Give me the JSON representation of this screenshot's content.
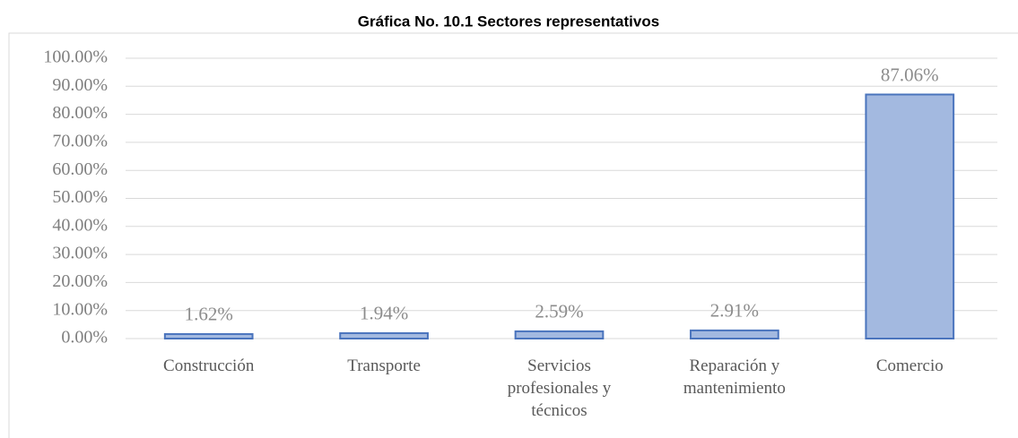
{
  "chart_data": {
    "type": "bar",
    "title": "Gráfica No. 10.1 Sectores representativos",
    "categories": [
      "Construcción",
      "Transporte",
      "Servicios profesionales y técnicos",
      "Reparación y mantenimiento",
      "Comercio"
    ],
    "values": [
      1.62,
      1.94,
      2.59,
      2.91,
      87.06
    ],
    "value_labels": [
      "1.62%",
      "1.94%",
      "2.59%",
      "2.91%",
      "87.06%"
    ],
    "color": "#a3b9e0",
    "edge_color": "#4a74bd",
    "ylim": [
      0,
      100
    ],
    "yticks": [
      {
        "value": 0,
        "label": "0.00%"
      },
      {
        "value": 10,
        "label": "10.00%"
      },
      {
        "value": 20,
        "label": "20.00%"
      },
      {
        "value": 30,
        "label": "30.00%"
      },
      {
        "value": 40,
        "label": "40.00%"
      },
      {
        "value": 50,
        "label": "50.00%"
      },
      {
        "value": 60,
        "label": "60.00%"
      },
      {
        "value": 70,
        "label": "70.00%"
      },
      {
        "value": 80,
        "label": "80.00%"
      },
      {
        "value": 90,
        "label": "90.00%"
      },
      {
        "value": 100,
        "label": "100.00%"
      }
    ],
    "grid": true
  }
}
